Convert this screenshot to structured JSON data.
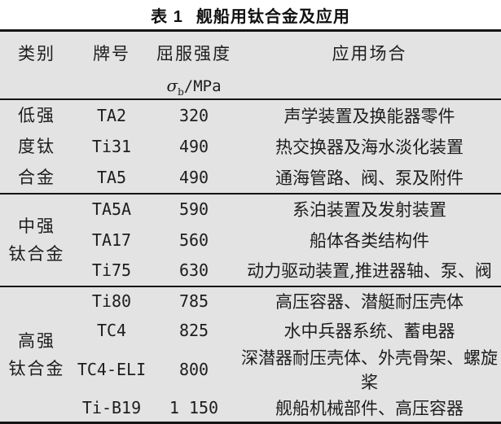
{
  "title": {
    "number": "表 1",
    "text": "舰船用钛合金及应用"
  },
  "colors": {
    "table_background": "#e3e3e3",
    "rule": "#151515",
    "text": "#1d1d1d"
  },
  "table": {
    "headers": {
      "category": "类别",
      "grade": "牌号",
      "strength_label": "屈服强度",
      "strength_symbol": "σ",
      "strength_symbol_sub": "b",
      "strength_unit": "/MPa",
      "application": "应用场合"
    },
    "groups": [
      {
        "category": "低强度钛合金",
        "category_lines": [
          "低强",
          "度钛",
          "合金"
        ],
        "rows": [
          {
            "grade": "TA2",
            "strength": "320",
            "application": "声学装置及换能器零件"
          },
          {
            "grade": "Ti31",
            "strength": "490",
            "application": "热交换器及海水淡化装置"
          },
          {
            "grade": "TA5",
            "strength": "490",
            "application": "通海管路、阀、泵及附件"
          }
        ]
      },
      {
        "category": "中强钛合金",
        "category_lines": [
          "中强",
          "钛合金"
        ],
        "rows": [
          {
            "grade": "TA5A",
            "strength": "590",
            "application": "系泊装置及发射装置"
          },
          {
            "grade": "TA17",
            "strength": "560",
            "application": "船体各类结构件"
          },
          {
            "grade": "Ti75",
            "strength": "630",
            "application": "动力驱动装置,推进器轴、泵、阀"
          }
        ]
      },
      {
        "category": "高强钛合金",
        "category_lines": [
          "高强",
          "钛合金"
        ],
        "rows": [
          {
            "grade": "Ti80",
            "strength": "785",
            "application": "高压容器、潜艇耐压壳体"
          },
          {
            "grade": "TC4",
            "strength": "825",
            "application": "水中兵器系统、蓄电器"
          },
          {
            "grade": "TC4-ELI",
            "strength": "800",
            "application": "深潜器耐压壳体、外壳骨架、螺旋桨"
          },
          {
            "grade": "Ti-B19",
            "strength": "1 150",
            "application": "舰船机械部件、高压容器"
          }
        ]
      }
    ]
  }
}
